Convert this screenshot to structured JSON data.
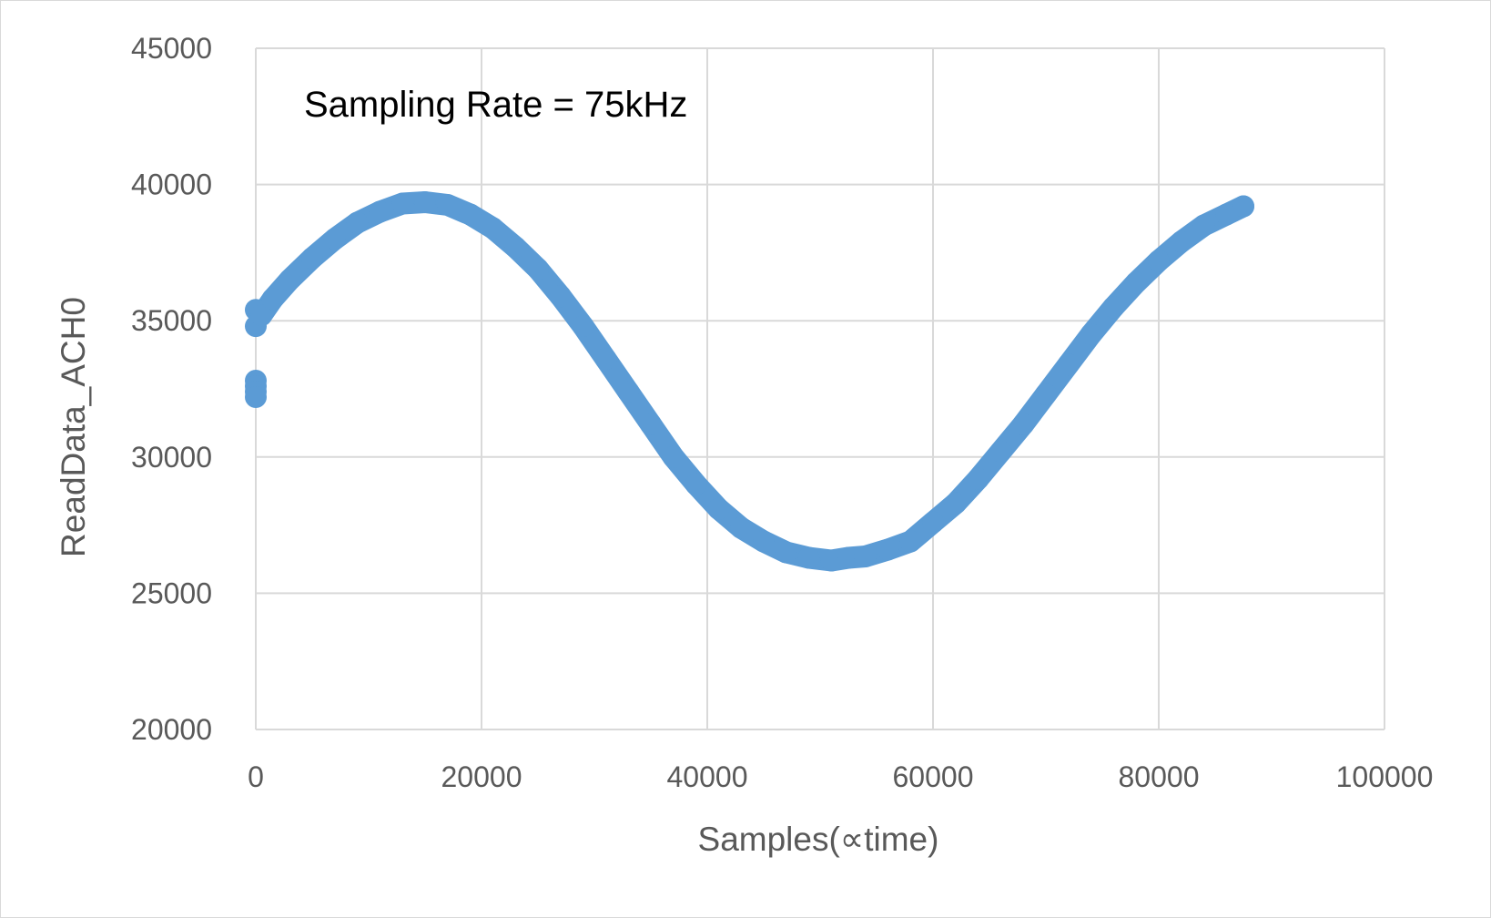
{
  "chart_data": {
    "type": "scatter",
    "xlabel": "Samples(∝time)",
    "ylabel": "ReadData_ACH0",
    "annotation": "Sampling Rate = 75kHz",
    "xlim": [
      0,
      100000
    ],
    "ylim": [
      20000,
      45000
    ],
    "x_ticks": [
      "0",
      "20000",
      "40000",
      "60000",
      "80000",
      "100000"
    ],
    "y_ticks": [
      "20000",
      "25000",
      "30000",
      "35000",
      "40000",
      "45000"
    ],
    "grid": true,
    "marker_color": "#5b9bd5",
    "series": [
      {
        "x": [
          0,
          0,
          0,
          0,
          0,
          0,
          500,
          1500,
          3000,
          5000,
          7000,
          9000,
          11000,
          13000,
          15000,
          17000,
          19000,
          21000,
          23000,
          25000,
          27000,
          29000,
          31000,
          33000,
          35000,
          37000,
          39000,
          41000,
          43000,
          45000,
          47000,
          49000,
          51000,
          52500,
          54000,
          56000,
          58000,
          60000,
          62000,
          64000,
          66000,
          68000,
          70000,
          72000,
          74000,
          76000,
          78000,
          80000,
          82000,
          84000,
          86000,
          87500
        ],
        "y": [
          35400,
          34800,
          32800,
          32600,
          32400,
          32200,
          35200,
          35800,
          36500,
          37300,
          38000,
          38600,
          39000,
          39300,
          39350,
          39250,
          38900,
          38400,
          37700,
          36900,
          35900,
          34800,
          33600,
          32400,
          31200,
          30000,
          29000,
          28100,
          27400,
          26900,
          26500,
          26300,
          26200,
          26300,
          26350,
          26600,
          26900,
          27600,
          28300,
          29200,
          30200,
          31200,
          32300,
          33400,
          34500,
          35500,
          36400,
          37200,
          37900,
          38500,
          38900,
          39200
        ]
      }
    ]
  }
}
